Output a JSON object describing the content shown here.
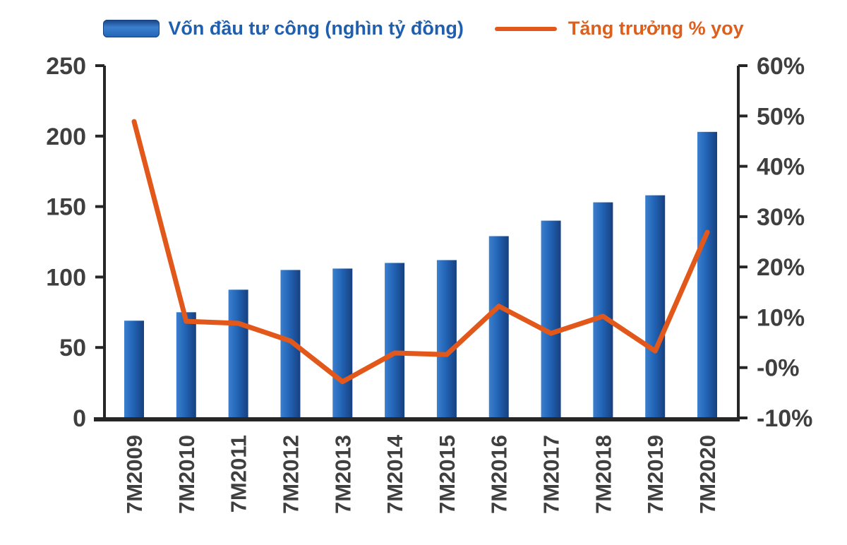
{
  "legend": {
    "bar_label": "Vốn đầu tư công (nghìn tỷ đồng)",
    "line_label": "Tăng trưởng % yoy"
  },
  "colors": {
    "bar_blue_light": "#3b7fce",
    "bar_blue": "#2264b6",
    "bar_blue_dark": "#17407f",
    "line_orange": "#e2581b",
    "legend_blue_text": "#1f5fae",
    "legend_orange_text": "#dd5f1e",
    "axis_text": "#3f3f3f",
    "axis_line": "#262626"
  },
  "chart_data": {
    "type": "bar",
    "subtype": "bar+line dual axis",
    "title": "",
    "xlabel": "",
    "ylabel_left": "Vốn đầu tư công (nghìn tỷ đồng)",
    "ylabel_right": "Tăng trưởng % yoy",
    "grid": false,
    "legend_position": "top",
    "categories": [
      "7M2009",
      "7M2010",
      "7M2011",
      "7M2012",
      "7M2013",
      "7M2014",
      "7M2015",
      "7M2016",
      "7M2017",
      "7M2018",
      "7M2019",
      "7M2020"
    ],
    "series": [
      {
        "name": "Vốn đầu tư công (nghìn tỷ đồng)",
        "type": "bar",
        "axis": "left",
        "values": [
          69,
          75,
          91,
          105,
          106,
          110,
          112,
          129,
          140,
          153,
          158,
          203
        ]
      },
      {
        "name": "Tăng trưởng % yoy",
        "type": "line",
        "axis": "right",
        "values": [
          48.9,
          9.2,
          8.8,
          5.3,
          -2.8,
          2.9,
          2.6,
          12.2,
          6.8,
          10.2,
          3.3,
          26.9
        ]
      }
    ],
    "left_axis": {
      "min": 0,
      "max": 250,
      "ticks": [
        0,
        50,
        100,
        150,
        200,
        250
      ],
      "tick_labels": [
        "0",
        "50",
        "100",
        "150",
        "200",
        "250"
      ]
    },
    "right_axis": {
      "min": -10,
      "max": 60,
      "ticks": [
        {
          "value": -10,
          "label": "-10%"
        },
        {
          "value": 0,
          "label": "-0%"
        },
        {
          "value": 10,
          "label": "10%"
        },
        {
          "value": 20,
          "label": "20%"
        },
        {
          "value": 30,
          "label": "30%"
        },
        {
          "value": 40,
          "label": "40%"
        },
        {
          "value": 50,
          "label": "50%"
        },
        {
          "value": 60,
          "label": "60%"
        }
      ]
    }
  }
}
